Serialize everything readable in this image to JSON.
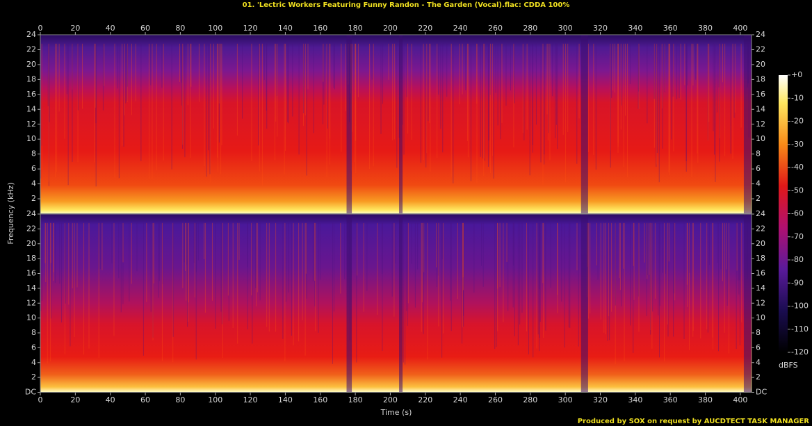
{
  "chart_data": {
    "type": "spectrogram",
    "title": "01. 'Lectric Workers Featuring Funny Randon - The Garden (Vocal).flac: CDDA 100%",
    "x_label": "Time (s)",
    "y_label": "Frequency (kHz)",
    "xlim": [
      0,
      406.4
    ],
    "xticks": [
      0,
      20,
      40,
      60,
      80,
      100,
      120,
      140,
      160,
      180,
      200,
      220,
      240,
      260,
      280,
      300,
      320,
      340,
      360,
      380,
      400
    ],
    "channels": [
      {
        "ylim": [
          0,
          24
        ],
        "yticks": [
          2,
          4,
          6,
          8,
          10,
          12,
          14,
          16,
          18,
          20,
          22,
          24
        ]
      },
      {
        "ylim": [
          0,
          24
        ],
        "yticks": [
          {
            "value": 0,
            "label": "DC"
          },
          2,
          4,
          6,
          8,
          10,
          12,
          14,
          16,
          18,
          20,
          22,
          24
        ]
      }
    ],
    "colorbar": {
      "label": "dBFS",
      "lim": [
        -120,
        0
      ],
      "ticks": [
        {
          "value": 0,
          "label": "+0"
        },
        -10,
        -20,
        -30,
        -40,
        -50,
        -60,
        -70,
        -80,
        -90,
        -100,
        -110,
        -120
      ]
    },
    "footer": "Produced by SOX on request by AUCDTECT TASK MANAGER"
  }
}
